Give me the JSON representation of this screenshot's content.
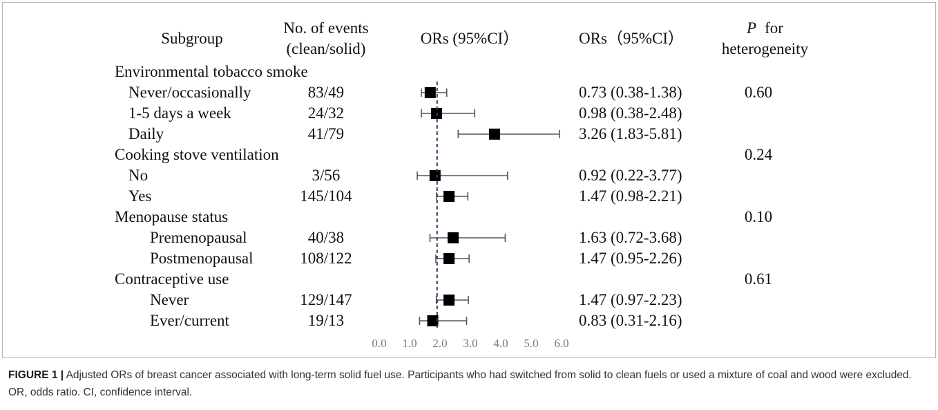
{
  "header": {
    "subgroup": "Subgroup",
    "events_line1": "No. of events",
    "events_line2": "(clean/solid)",
    "plot_title": "ORs (95%CI）",
    "or_column_title": "ORs（95%CI）",
    "p_symbol": "P",
    "p_line1_rest": "for",
    "p_line2": "heterogeneity"
  },
  "chart_data": {
    "type": "scatter",
    "error_bars": true,
    "x_axis": {
      "min": 0,
      "max": 6,
      "ticks": [
        "0.0",
        "1.0",
        "2.0",
        "3.0",
        "4.0",
        "5.0",
        "6.0"
      ],
      "reference_line": 1.0
    },
    "colors": {
      "marker": "#000000",
      "whisker": "#555555",
      "reference_line": "#2c3e66"
    },
    "groups": [
      {
        "label": "Environmental tobacco smoke",
        "items": [
          {
            "label": "Never/occasionally",
            "events": "83/49",
            "or": 0.73,
            "ci_low": 0.38,
            "ci_high": 1.38,
            "or_text": "0.73 (0.38-1.38)",
            "p": "0.60"
          },
          {
            "label": "1-5 days a week",
            "events": "24/32",
            "or": 0.98,
            "ci_low": 0.38,
            "ci_high": 2.48,
            "or_text": "0.98 (0.38-2.48)"
          },
          {
            "label": "Daily",
            "events": "41/79",
            "or": 3.26,
            "ci_low": 1.83,
            "ci_high": 5.81,
            "or_text": "3.26 (1.83-5.81)"
          }
        ]
      },
      {
        "label": "Cooking stove ventilation",
        "p": "0.24",
        "items": [
          {
            "label": "No",
            "events": "3/56",
            "or": 0.92,
            "ci_low": 0.22,
            "ci_high": 3.77,
            "or_text": "0.92 (0.22-3.77)"
          },
          {
            "label": "Yes",
            "events": "145/104",
            "or": 1.47,
            "ci_low": 0.98,
            "ci_high": 2.21,
            "or_text": "1.47 (0.98-2.21)"
          }
        ]
      },
      {
        "label": "Menopause status",
        "p": "0.10",
        "items": [
          {
            "label": "Premenopausal",
            "events": "40/38",
            "or": 1.63,
            "ci_low": 0.72,
            "ci_high": 3.68,
            "or_text": "1.63 (0.72-3.68)"
          },
          {
            "label": "Postmenopausal",
            "events": "108/122",
            "or": 1.47,
            "ci_low": 0.95,
            "ci_high": 2.26,
            "or_text": "1.47 (0.95-2.26)"
          }
        ]
      },
      {
        "label": "Contraceptive use",
        "p": "0.61",
        "items": [
          {
            "label": "Never",
            "events": "129/147",
            "or": 1.47,
            "ci_low": 0.97,
            "ci_high": 2.23,
            "or_text": "1.47 (0.97-2.23)"
          },
          {
            "label": "Ever/current",
            "events": "19/13",
            "or": 0.83,
            "ci_low": 0.31,
            "ci_high": 2.16,
            "or_text": "0.83 (0.31-2.16)"
          }
        ]
      }
    ]
  },
  "caption": {
    "label": "FIGURE 1 |",
    "text": "Adjusted ORs of breast cancer associated with long-term solid fuel use. Participants who had switched from solid to clean fuels or used a mixture of coal and wood were excluded. OR, odds ratio. CI, confidence interval."
  }
}
